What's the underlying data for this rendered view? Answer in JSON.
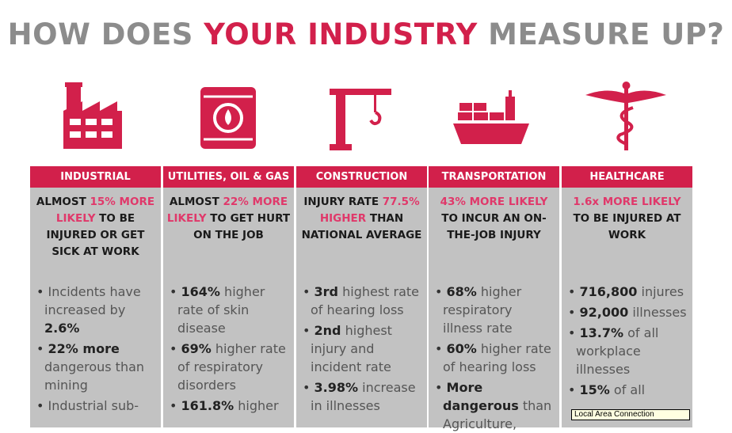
{
  "title": {
    "part1": "HOW DOES ",
    "part2": "YOUR INDUSTRY",
    "part3": " MEASURE UP?"
  },
  "colors": {
    "accent": "#d2204b",
    "panel": "#c2c2c2",
    "title_gray": "#8c8c8c"
  },
  "columns": [
    {
      "icon": "factory-icon",
      "header": "INDUSTRIAL",
      "lead": [
        {
          "t": "ALMOST ",
          "r": false
        },
        {
          "t": "15% MORE LIKELY",
          "r": true
        },
        {
          "t": " TO BE INJURED OR GET SICK AT WORK",
          "r": false
        }
      ],
      "bullets": [
        {
          "b": "",
          "n": "Incidents have increased by ",
          "b2": "2.6%"
        },
        {
          "b": "22% more",
          "n": " dangerous than mining"
        },
        {
          "b": "",
          "n": "Industrial sub-"
        }
      ]
    },
    {
      "icon": "oil-barrel-icon",
      "header": "UTILITIES, OIL & GAS",
      "lead": [
        {
          "t": "ALMOST ",
          "r": false
        },
        {
          "t": "22% MORE LIKELY",
          "r": true
        },
        {
          "t": " TO GET HURT ON THE JOB",
          "r": false
        }
      ],
      "bullets": [
        {
          "b": "164%",
          "n": " higher rate of skin disease"
        },
        {
          "b": "69%",
          "n": " higher rate of respiratory disorders"
        },
        {
          "b": "161.8%",
          "n": " higher"
        }
      ]
    },
    {
      "icon": "crane-icon",
      "header": "CONSTRUCTION",
      "lead": [
        {
          "t": "INJURY RATE ",
          "r": false
        },
        {
          "t": "77.5% HIGHER",
          "r": true
        },
        {
          "t": " THAN NATIONAL AVERAGE",
          "r": false
        }
      ],
      "bullets": [
        {
          "b": "3rd",
          "n": " highest rate of hearing loss"
        },
        {
          "b": "2nd",
          "n": " highest injury  and incident rate"
        },
        {
          "b": "3.98%",
          "n": " increase in illnesses"
        }
      ]
    },
    {
      "icon": "cargo-ship-icon",
      "header": "TRANSPORTATION",
      "lead": [
        {
          "t": "43% MORE LIKELY",
          "r": true
        },
        {
          "t": " TO INCUR AN ON-THE-JOB INJURY",
          "r": false
        }
      ],
      "bullets": [
        {
          "b": "68%",
          "n": " higher respiratory illness rate"
        },
        {
          "b": "60%",
          "n": " higher rate of hearing loss"
        },
        {
          "b": "More dangerous",
          "n": " than Agriculture,"
        }
      ]
    },
    {
      "icon": "caduceus-icon",
      "header": "HEALTHCARE",
      "lead": [
        {
          "t": "1.6x MORE LIKELY",
          "r": true
        },
        {
          "t": " TO BE INJURED AT WORK",
          "r": false
        }
      ],
      "bullets": [
        {
          "b": "716,800",
          "n": " injures"
        },
        {
          "b": "92,000",
          "n": " illnesses"
        },
        {
          "b": "13.7%",
          "n": " of all workplace illnesses"
        },
        {
          "b": "15%",
          "n": " of all"
        }
      ]
    }
  ],
  "tooltip": "Local Area Connection"
}
